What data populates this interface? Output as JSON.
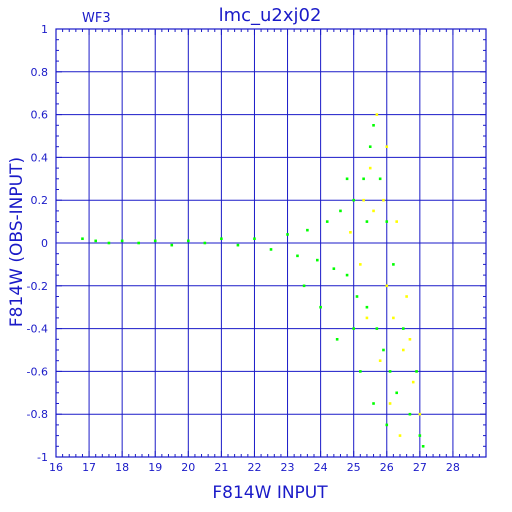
{
  "chart_data": {
    "type": "scatter",
    "title": "lmc_u2xj02",
    "subtitle": "WF3",
    "xlabel": "F814W INPUT",
    "ylabel": "F814W (OBS-INPUT)",
    "xlim": [
      16,
      29
    ],
    "ylim": [
      -1,
      1
    ],
    "x_ticks": [
      "16",
      "17",
      "18",
      "19",
      "20",
      "21",
      "22",
      "23",
      "24",
      "25",
      "26",
      "27",
      "28"
    ],
    "y_ticks": [
      "-1",
      "-0.8",
      "-0.6",
      "-0.4",
      "-0.2",
      "0",
      "0.2",
      "0.4",
      "0.6",
      "0.8",
      "1"
    ],
    "grid": true,
    "colors": {
      "axis": "#1a1ac8",
      "grid": "#1a1ac8",
      "series_green": "#00ff00",
      "series_yellow": "#ffff00"
    },
    "series": [
      {
        "color": "#00ff00",
        "points": [
          [
            16.8,
            0.02
          ],
          [
            17.2,
            0.01
          ],
          [
            17.6,
            0.0
          ],
          [
            18.0,
            0.01
          ],
          [
            18.5,
            0.0
          ],
          [
            19.0,
            0.01
          ],
          [
            19.5,
            -0.01
          ],
          [
            20.0,
            0.01
          ],
          [
            20.5,
            0.0
          ],
          [
            21.0,
            0.02
          ],
          [
            21.5,
            -0.01
          ],
          [
            22.0,
            0.02
          ],
          [
            22.5,
            -0.03
          ],
          [
            23.0,
            0.04
          ],
          [
            23.3,
            -0.06
          ],
          [
            23.6,
            0.06
          ],
          [
            23.9,
            -0.08
          ],
          [
            24.2,
            0.1
          ],
          [
            24.4,
            -0.12
          ],
          [
            24.6,
            0.15
          ],
          [
            24.8,
            -0.15
          ],
          [
            25.0,
            0.2
          ],
          [
            25.1,
            -0.25
          ],
          [
            25.3,
            0.3
          ],
          [
            25.4,
            -0.3
          ],
          [
            25.5,
            0.45
          ],
          [
            25.6,
            0.55
          ],
          [
            25.7,
            -0.4
          ],
          [
            25.8,
            0.3
          ],
          [
            25.9,
            -0.5
          ],
          [
            26.0,
            0.1
          ],
          [
            26.1,
            -0.6
          ],
          [
            26.2,
            -0.1
          ],
          [
            26.3,
            -0.7
          ],
          [
            26.5,
            -0.4
          ],
          [
            26.7,
            -0.8
          ],
          [
            26.9,
            -0.6
          ],
          [
            27.0,
            -0.9
          ],
          [
            27.1,
            -0.95
          ],
          [
            24.0,
            -0.3
          ],
          [
            23.5,
            -0.2
          ],
          [
            24.5,
            -0.45
          ],
          [
            25.2,
            -0.6
          ],
          [
            25.6,
            -0.75
          ],
          [
            26.0,
            -0.85
          ],
          [
            25.0,
            -0.4
          ],
          [
            24.8,
            0.3
          ],
          [
            25.4,
            0.1
          ]
        ]
      },
      {
        "color": "#ffff00",
        "points": [
          [
            24.9,
            0.05
          ],
          [
            25.2,
            -0.1
          ],
          [
            25.5,
            0.35
          ],
          [
            25.7,
            0.6
          ],
          [
            25.9,
            0.2
          ],
          [
            26.0,
            -0.2
          ],
          [
            26.2,
            -0.35
          ],
          [
            26.3,
            0.1
          ],
          [
            26.5,
            -0.5
          ],
          [
            26.6,
            -0.25
          ],
          [
            26.8,
            -0.65
          ],
          [
            27.0,
            -0.8
          ],
          [
            25.8,
            -0.55
          ],
          [
            25.4,
            -0.35
          ],
          [
            26.1,
            -0.75
          ],
          [
            26.4,
            -0.9
          ],
          [
            25.6,
            0.15
          ],
          [
            26.0,
            0.45
          ],
          [
            25.3,
            0.2
          ],
          [
            26.7,
            -0.45
          ]
        ]
      }
    ]
  }
}
